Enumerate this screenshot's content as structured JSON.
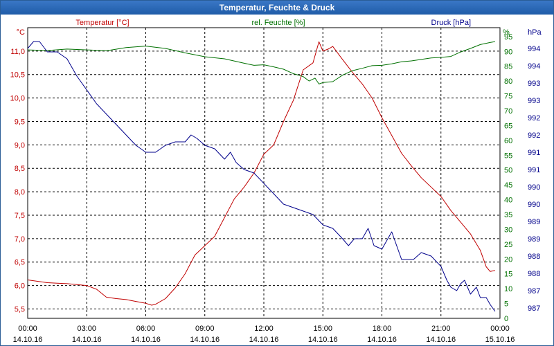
{
  "window": {
    "title": "Temperatur, Feuchte & Druck"
  },
  "colors": {
    "temperature": "#c00000",
    "humidity": "#007000",
    "pressure": "#00008b",
    "title_bar": "#2a65b0"
  },
  "chart_data": {
    "type": "line",
    "title": "Temperatur, Feuchte & Druck",
    "grid": true,
    "x_ticks": [
      {
        "time": "00:00",
        "date": "14.10.16"
      },
      {
        "time": "03:00",
        "date": "14.10.16"
      },
      {
        "time": "06:00",
        "date": "14.10.16"
      },
      {
        "time": "09:00",
        "date": "14.10.16"
      },
      {
        "time": "12:00",
        "date": "14.10.16"
      },
      {
        "time": "15:00",
        "date": "14.10.16"
      },
      {
        "time": "18:00",
        "date": "14.10.16"
      },
      {
        "time": "21:00",
        "date": "14.10.16"
      },
      {
        "time": "00:00",
        "date": "15.10.16"
      }
    ],
    "xlim": [
      0,
      24
    ],
    "axes": {
      "temperature": {
        "label": "Temperatur [°C]",
        "unit": "°C",
        "ylim": [
          5.3,
          11.5
        ],
        "ticks": [
          "5,5",
          "6,0",
          "6,5",
          "7,0",
          "7,5",
          "8,0",
          "8,5",
          "9,0",
          "9,5",
          "10,0",
          "10,5",
          "11,0"
        ],
        "tick_values": [
          5.5,
          6.0,
          6.5,
          7.0,
          7.5,
          8.0,
          8.5,
          9.0,
          9.5,
          10.0,
          10.5,
          11.0
        ]
      },
      "humidity": {
        "label": "rel. Feuchte [%]",
        "unit": "%",
        "ylim": [
          0,
          98
        ],
        "ticks": [
          "0",
          "5",
          "10",
          "15",
          "20",
          "25",
          "30",
          "35",
          "40",
          "45",
          "50",
          "55",
          "60",
          "65",
          "70",
          "75",
          "80",
          "85",
          "90",
          "95"
        ],
        "tick_values": [
          0,
          5,
          10,
          15,
          20,
          25,
          30,
          35,
          40,
          45,
          50,
          55,
          60,
          65,
          70,
          75,
          80,
          85,
          90,
          95
        ]
      },
      "pressure": {
        "label": "Druck [hPa]",
        "unit": "hPa",
        "ylim": [
          986.3,
          994.7
        ],
        "ticks": [
          "987",
          "987",
          "988",
          "988",
          "989",
          "989",
          "990",
          "990",
          "991",
          "991",
          "992",
          "992",
          "993",
          "993",
          "994",
          "994"
        ],
        "tick_values": [
          986.6,
          987.1,
          987.6,
          988.1,
          988.6,
          989.1,
          989.6,
          990.1,
          990.6,
          991.1,
          991.6,
          992.1,
          992.6,
          993.1,
          993.6,
          994.1
        ]
      }
    },
    "series": [
      {
        "name": "Temperatur [°C]",
        "axis": "temperature",
        "x": [
          0,
          0.5,
          1,
          1.5,
          2,
          2.5,
          3,
          3.5,
          4,
          4.5,
          5,
          5.5,
          6,
          6.3,
          6.5,
          7,
          7.5,
          8,
          8.5,
          9,
          9.5,
          10,
          10.5,
          11,
          11.5,
          12,
          12.5,
          13,
          13.5,
          14,
          14.5,
          14.8,
          15,
          15.3,
          15.5,
          16,
          16.5,
          17,
          17.5,
          18,
          18.5,
          19,
          19.5,
          20,
          20.5,
          21,
          21.5,
          22,
          22.5,
          23,
          23.3,
          23.5,
          23.75
        ],
        "y": [
          6.12,
          6.09,
          6.06,
          6.05,
          6.04,
          6.02,
          6.0,
          5.92,
          5.75,
          5.72,
          5.7,
          5.66,
          5.62,
          5.58,
          5.6,
          5.72,
          5.95,
          6.25,
          6.65,
          6.85,
          7.05,
          7.45,
          7.85,
          8.1,
          8.4,
          8.8,
          9.0,
          9.5,
          9.95,
          10.6,
          10.75,
          11.2,
          11.0,
          11.05,
          11.1,
          10.82,
          10.55,
          10.3,
          10.0,
          9.58,
          9.2,
          8.82,
          8.55,
          8.3,
          8.1,
          7.9,
          7.6,
          7.35,
          7.1,
          6.75,
          6.4,
          6.3,
          6.32
        ]
      },
      {
        "name": "rel. Feuchte [%]",
        "axis": "humidity",
        "x": [
          0,
          1,
          2,
          3,
          4,
          5,
          6,
          7,
          8,
          9,
          10,
          11,
          11.5,
          12,
          12.5,
          13,
          13.5,
          14,
          14.3,
          14.6,
          14.8,
          15,
          15.5,
          16,
          16.5,
          17,
          17.5,
          18,
          18.5,
          19,
          19.5,
          20,
          20.5,
          21,
          21.5,
          22,
          22.5,
          23,
          23.5,
          23.75
        ],
        "y": [
          90.5,
          90.3,
          90.8,
          90.5,
          90.2,
          91.3,
          91.8,
          91.0,
          89.5,
          88.2,
          87.5,
          86.0,
          85.3,
          85.5,
          84.8,
          84.0,
          82.5,
          81.5,
          80.0,
          81.0,
          79.0,
          79.5,
          79.8,
          82.0,
          83.5,
          84.3,
          85.2,
          85.3,
          85.8,
          86.5,
          86.8,
          87.3,
          87.8,
          88.0,
          88.3,
          89.8,
          91.0,
          92.3,
          93.0,
          93.3
        ]
      },
      {
        "name": "Druck [hPa]",
        "axis": "pressure",
        "x": [
          0,
          0.3,
          0.6,
          1,
          1.5,
          2,
          2.5,
          3,
          3.5,
          4,
          4.5,
          5,
          5.5,
          6,
          6.5,
          7,
          7.5,
          8,
          8.3,
          8.6,
          9,
          9.5,
          10,
          10.3,
          10.6,
          11,
          11.5,
          12,
          12.5,
          13,
          13.5,
          14,
          14.5,
          15,
          15.5,
          16,
          16.3,
          16.6,
          17,
          17.3,
          17.6,
          18,
          18.5,
          19,
          19.3,
          19.6,
          20,
          20.5,
          21,
          21.3,
          21.5,
          21.8,
          22,
          22.2,
          22.5,
          22.8,
          23,
          23.3,
          23.5,
          23.75
        ],
        "y": [
          994.1,
          994.3,
          994.3,
          994.0,
          994.0,
          993.8,
          993.3,
          992.9,
          992.5,
          992.2,
          991.9,
          991.6,
          991.3,
          991.1,
          991.1,
          991.3,
          991.4,
          991.4,
          991.6,
          991.5,
          991.3,
          991.2,
          990.9,
          991.1,
          990.8,
          990.6,
          990.5,
          990.2,
          989.9,
          989.6,
          989.5,
          989.4,
          989.3,
          989.0,
          988.9,
          988.6,
          988.4,
          988.6,
          988.6,
          988.9,
          988.4,
          988.3,
          988.8,
          988.0,
          988.0,
          988.0,
          988.2,
          988.1,
          987.8,
          987.4,
          987.2,
          987.1,
          987.3,
          987.4,
          987.0,
          987.2,
          986.9,
          986.9,
          986.7,
          986.5
        ]
      }
    ]
  }
}
